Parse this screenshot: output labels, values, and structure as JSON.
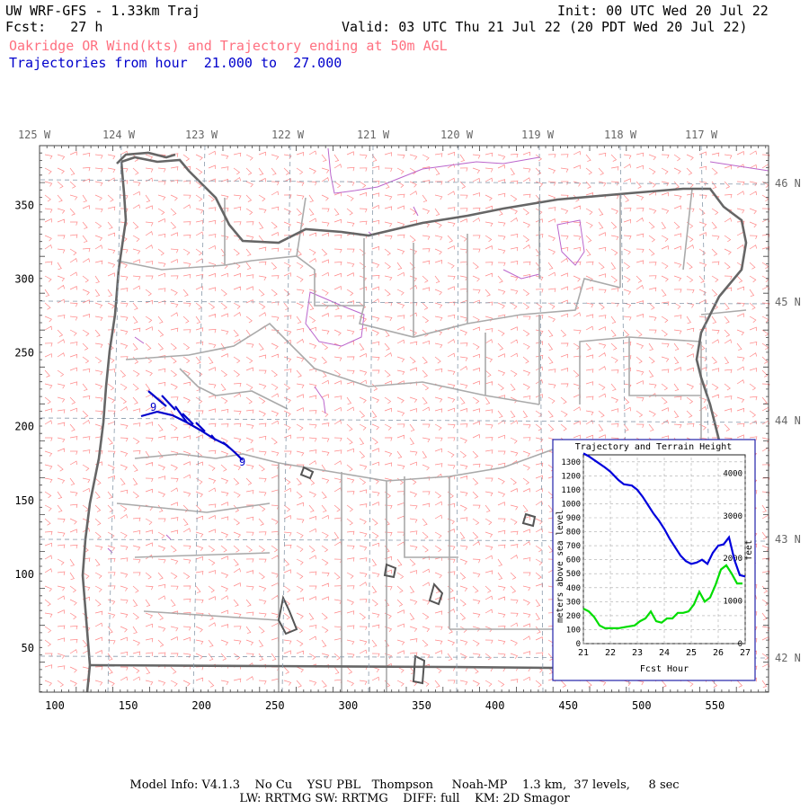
{
  "header": {
    "title": "UW WRF-GFS - 1.33km Traj",
    "init": "Init: 00 UTC Wed 20 Jul 22",
    "fcst": "Fcst:   27 h",
    "valid": "Valid: 03 UTC Thu 21 Jul 22 (20 PDT Wed 20 Jul 22)",
    "subtitle": "Oakridge OR Wind(kts) and Trajectory ending at 50m AGL",
    "traj_range": "Trajectories from hour  21.000 to  27.000"
  },
  "map": {
    "lon_labels": [
      "125 W",
      "124 W",
      "123 W",
      "122 W",
      "121 W",
      "120 W",
      "119 W",
      "118 W",
      "117 W"
    ],
    "lat_labels": [
      "46 N",
      "45 N",
      "44 N",
      "43 N",
      "42 N"
    ],
    "y_ticks": [
      "350",
      "300",
      "250",
      "200",
      "150",
      "100",
      "50"
    ],
    "x_ticks": [
      "100",
      "150",
      "200",
      "250",
      "300",
      "350",
      "400",
      "450",
      "500",
      "550"
    ],
    "colors": {
      "wind_barbs": "#ff8888",
      "borders": "#666666",
      "counties": "#aaaaaa",
      "water": "#bb66cc",
      "trajectory": "#0000cc",
      "grid": "#8899aa"
    }
  },
  "trajectory_labels": [
    "9",
    "9"
  ],
  "inset": {
    "title": "Trajectory and Terrain Height",
    "ylabel_left": "meters above sea level",
    "ylabel_right": "feet",
    "xlabel": "Fcst Hour",
    "left_ticks": [
      "0",
      "100",
      "200",
      "300",
      "400",
      "500",
      "600",
      "700",
      "800",
      "900",
      "1000",
      "1100",
      "1200",
      "1300"
    ],
    "right_ticks": [
      "0",
      "1000",
      "2000",
      "3000",
      "4000"
    ],
    "x_ticks": [
      "21",
      "22",
      "23",
      "24",
      "25",
      "26",
      "27"
    ]
  },
  "chart_data": {
    "type": "line",
    "title": "Trajectory and Terrain Height",
    "xlabel": "Fcst Hour",
    "ylabel": "meters above sea level",
    "xlim": [
      21,
      27
    ],
    "ylim": [
      0,
      1350
    ],
    "series": [
      {
        "name": "trajectory",
        "color": "#0000dd",
        "x": [
          21.0,
          21.2,
          21.5,
          21.8,
          22.0,
          22.3,
          22.5,
          22.8,
          23.0,
          23.2,
          23.4,
          23.6,
          23.8,
          24.0,
          24.2,
          24.4,
          24.6,
          24.8,
          25.0,
          25.2,
          25.4,
          25.6,
          25.8,
          26.0,
          26.2,
          26.4,
          26.6,
          26.8,
          27.0
        ],
        "y": [
          1360,
          1340,
          1300,
          1260,
          1230,
          1170,
          1140,
          1130,
          1100,
          1050,
          990,
          930,
          880,
          820,
          750,
          690,
          630,
          590,
          570,
          580,
          600,
          570,
          650,
          700,
          710,
          760,
          600,
          490,
          480
        ]
      },
      {
        "name": "terrain",
        "color": "#00dd00",
        "x": [
          21.0,
          21.2,
          21.4,
          21.6,
          21.8,
          22.0,
          22.3,
          22.6,
          22.9,
          23.1,
          23.3,
          23.5,
          23.7,
          23.9,
          24.1,
          24.3,
          24.5,
          24.7,
          24.9,
          25.1,
          25.3,
          25.5,
          25.7,
          25.9,
          26.1,
          26.3,
          26.5,
          26.7,
          26.9
        ],
        "y": [
          250,
          230,
          190,
          130,
          110,
          110,
          110,
          120,
          130,
          160,
          180,
          230,
          160,
          150,
          180,
          180,
          220,
          220,
          230,
          280,
          370,
          300,
          330,
          420,
          530,
          560,
          500,
          430,
          430
        ]
      }
    ]
  },
  "footer": {
    "line1": "Model Info: V4.1.3    No Cu    YSU PBL   Thompson     Noah-MP    1.3 km,  37 levels,     8 sec",
    "line2": "LW: RRTMG SW: RRTMG    DIFF: full    KM: 2D Smagor"
  }
}
